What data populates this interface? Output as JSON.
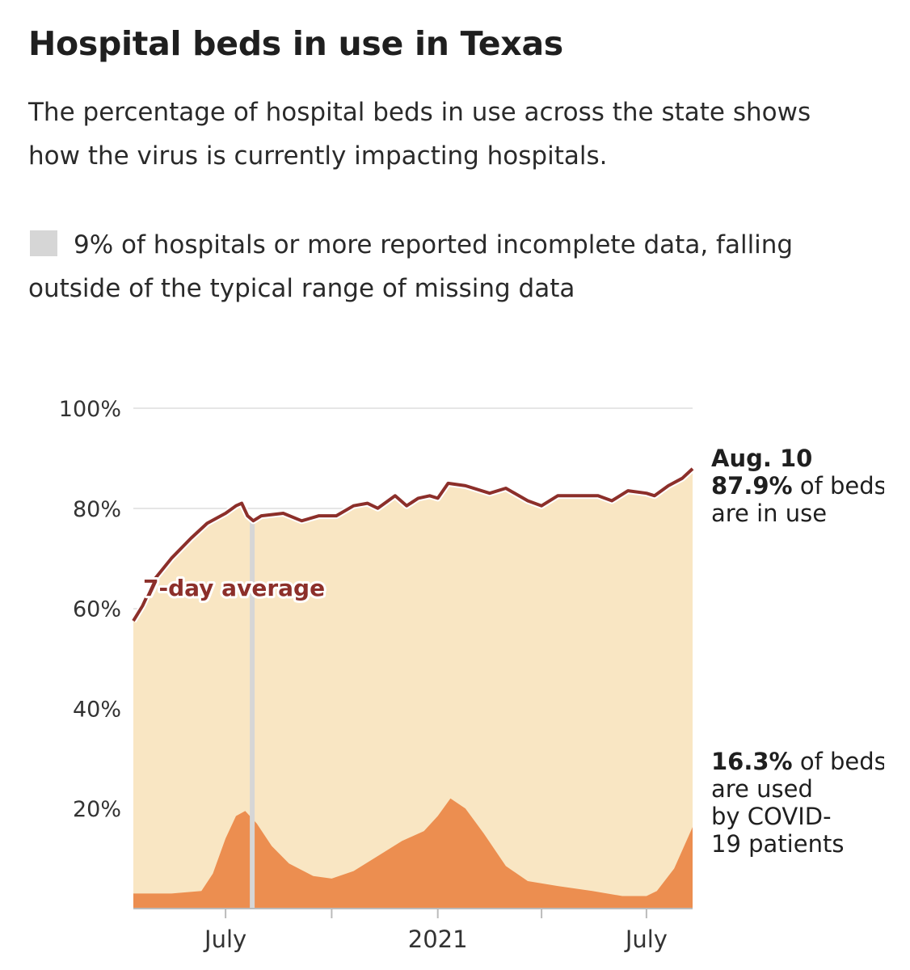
{
  "header": {
    "title": "Hospital beds in use in Texas",
    "subtitle": "The percentage of hospital beds in use across the state shows how the virus is currently impacting hospitals."
  },
  "legend": {
    "swatch_color": "#d6d6d6",
    "text": "9% of hospitals or more reported incomplete data, falling outside of the typical range of missing data"
  },
  "annotations": {
    "top_date": "Aug. 10",
    "top_value": "87.9%",
    "top_rest1": " of beds",
    "top_rest2": "are in use",
    "bottom_value": "16.3%",
    "bottom_rest1": " of beds",
    "bottom_rest2": "are used",
    "bottom_rest3": "by COVID-",
    "bottom_rest4": "19 patients"
  },
  "chart_data": {
    "type": "area",
    "title": "Hospital beds in use in Texas",
    "x_range": [
      "2020-04-12",
      "2021-08-10"
    ],
    "y_range": [
      0,
      100
    ],
    "y_ticks": [
      "20%",
      "40%",
      "60%",
      "80%",
      "100%"
    ],
    "y_tick_values": [
      20,
      40,
      60,
      80,
      100
    ],
    "x_tick_labels": [
      "July",
      "2021",
      "July"
    ],
    "x_tick_dates": [
      "2020-07-01",
      "2021-01-01",
      "2021-07-01"
    ],
    "line_label": "7-day average",
    "colors": {
      "beds_in_use": "#f9e6c3",
      "covid_beds": "#ec8e50",
      "seven_day_average": "#8c2f2a",
      "incomplete_data": "#d6d6d6"
    },
    "incomplete_data_dates": [
      "2020-07-22",
      "2020-07-25"
    ],
    "series": [
      {
        "name": "7-day average",
        "points": [
          [
            "2020-04-12",
            57.5
          ],
          [
            "2020-04-20",
            60.5
          ],
          [
            "2020-05-01",
            66.0
          ],
          [
            "2020-05-15",
            70.0
          ],
          [
            "2020-06-01",
            74.0
          ],
          [
            "2020-06-15",
            77.0
          ],
          [
            "2020-07-01",
            79.0
          ],
          [
            "2020-07-10",
            80.5
          ],
          [
            "2020-07-15",
            81.0
          ],
          [
            "2020-07-20",
            78.5
          ],
          [
            "2020-07-25",
            77.5
          ],
          [
            "2020-08-01",
            78.5
          ],
          [
            "2020-08-20",
            79.0
          ],
          [
            "2020-09-05",
            77.5
          ],
          [
            "2020-09-20",
            78.5
          ],
          [
            "2020-10-05",
            78.5
          ],
          [
            "2020-10-20",
            80.5
          ],
          [
            "2020-11-01",
            81.0
          ],
          [
            "2020-11-10",
            80.0
          ],
          [
            "2020-11-25",
            82.5
          ],
          [
            "2020-12-05",
            80.5
          ],
          [
            "2020-12-15",
            82.0
          ],
          [
            "2020-12-25",
            82.5
          ],
          [
            "2021-01-01",
            82.0
          ],
          [
            "2021-01-10",
            85.0
          ],
          [
            "2021-01-25",
            84.5
          ],
          [
            "2021-02-15",
            83.0
          ],
          [
            "2021-03-01",
            84.0
          ],
          [
            "2021-03-20",
            81.5
          ],
          [
            "2021-04-01",
            80.5
          ],
          [
            "2021-04-15",
            82.5
          ],
          [
            "2021-05-01",
            82.5
          ],
          [
            "2021-05-20",
            82.5
          ],
          [
            "2021-06-01",
            81.5
          ],
          [
            "2021-06-15",
            83.5
          ],
          [
            "2021-07-01",
            83.0
          ],
          [
            "2021-07-08",
            82.5
          ],
          [
            "2021-07-20",
            84.5
          ],
          [
            "2021-08-01",
            86.0
          ],
          [
            "2021-08-10",
            87.9
          ]
        ]
      },
      {
        "name": "COVID-19 patients",
        "points": [
          [
            "2020-04-12",
            3.0
          ],
          [
            "2020-05-15",
            3.0
          ],
          [
            "2020-06-10",
            3.5
          ],
          [
            "2020-06-20",
            7.0
          ],
          [
            "2020-07-01",
            14.0
          ],
          [
            "2020-07-10",
            18.5
          ],
          [
            "2020-07-18",
            19.5
          ],
          [
            "2020-07-28",
            17.0
          ],
          [
            "2020-08-10",
            12.5
          ],
          [
            "2020-08-25",
            9.0
          ],
          [
            "2020-09-15",
            6.5
          ],
          [
            "2020-10-01",
            6.0
          ],
          [
            "2020-10-20",
            7.5
          ],
          [
            "2020-11-10",
            10.5
          ],
          [
            "2020-12-01",
            13.5
          ],
          [
            "2020-12-20",
            15.5
          ],
          [
            "2021-01-01",
            18.5
          ],
          [
            "2021-01-12",
            22.0
          ],
          [
            "2021-01-25",
            20.0
          ],
          [
            "2021-02-10",
            15.0
          ],
          [
            "2021-03-01",
            8.5
          ],
          [
            "2021-03-20",
            5.5
          ],
          [
            "2021-04-15",
            4.5
          ],
          [
            "2021-05-15",
            3.5
          ],
          [
            "2021-06-10",
            2.5
          ],
          [
            "2021-07-01",
            2.5
          ],
          [
            "2021-07-10",
            3.5
          ],
          [
            "2021-07-25",
            8.0
          ],
          [
            "2021-08-10",
            16.3
          ]
        ]
      }
    ]
  }
}
